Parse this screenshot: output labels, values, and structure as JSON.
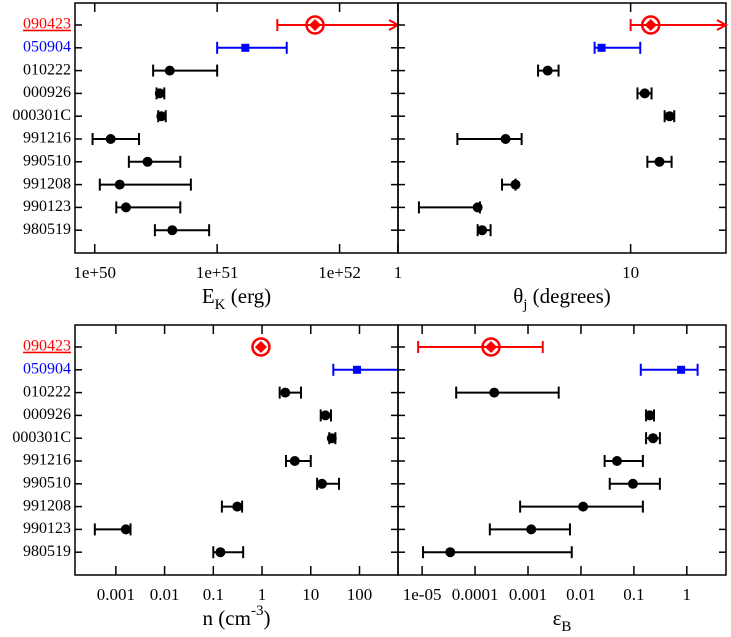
{
  "chart_data": [
    {
      "type": "errorbar",
      "categories": [
        "090423",
        "050904",
        "010222",
        "000926",
        "000301C",
        "991216",
        "990510",
        "991208",
        "990123",
        "980519"
      ],
      "underline_index": 0,
      "values": [
        6.3e+51,
        1.7e+51,
        4.1e+50,
        3.4e+50,
        3.5e+50,
        1.35e+50,
        2.7e+50,
        1.6e+50,
        1.8e+50,
        4.3e+50
      ],
      "lower": [
        3.1e+51,
        1e+51,
        3e+50,
        3.2e+50,
        3.3e+50,
        9.6e+49,
        1.9e+50,
        1.1e+50,
        1.5e+50,
        3.1e+50
      ],
      "upper": [
        null,
        3.7e+51,
        1e+51,
        3.7e+50,
        3.8e+50,
        2.3e+50,
        5e+50,
        6.1e+50,
        5e+50,
        8.6e+50
      ],
      "upper_arrow": [
        true,
        false,
        false,
        false,
        false,
        false,
        false,
        false,
        false,
        false
      ],
      "colors": [
        "#ff0000",
        "#0000ff",
        "#000000",
        "#000000",
        "#000000",
        "#000000",
        "#000000",
        "#000000",
        "#000000",
        "#000000"
      ],
      "markers": [
        "circled-diamond",
        "square",
        "circle",
        "circle",
        "circle",
        "circle",
        "circle",
        "circle",
        "circle",
        "circle"
      ],
      "xscale": "log",
      "xlim": [
        6.9e+49,
        3e+52
      ],
      "xticks": [
        {
          "value": 1e+50,
          "label": "1e+50"
        },
        {
          "value": 1e+51,
          "label": "1e+51"
        },
        {
          "value": 1e+52,
          "label": "1e+52"
        }
      ],
      "xlabel": [
        {
          "text": "E"
        },
        {
          "text": "K",
          "shift": "sub"
        },
        {
          "text": " (erg)"
        }
      ]
    },
    {
      "type": "errorbar",
      "values": [
        12.2,
        7.5,
        4.4,
        11.5,
        14.7,
        2.9,
        13.3,
        3.2,
        2.2,
        2.3
      ],
      "lower": [
        10,
        7.0,
        4.0,
        10.7,
        14.0,
        1.8,
        11.8,
        2.8,
        1.23,
        2.2
      ],
      "upper": [
        null,
        11.0,
        4.9,
        12.3,
        15.4,
        3.4,
        15.0,
        3.2,
        2.25,
        2.5
      ],
      "upper_arrow": [
        true,
        false,
        false,
        false,
        false,
        false,
        false,
        false,
        false,
        false
      ],
      "colors": [
        "#ff0000",
        "#0000ff",
        "#000000",
        "#000000",
        "#000000",
        "#000000",
        "#000000",
        "#000000",
        "#000000",
        "#000000"
      ],
      "markers": [
        "circled-diamond",
        "square",
        "circle",
        "circle",
        "circle",
        "circle",
        "circle",
        "circle",
        "circle",
        "circle"
      ],
      "xscale": "log",
      "xlim": [
        1,
        25.7
      ],
      "xticks": [
        1,
        10
      ],
      "xlabel": [
        {
          "text": "θ"
        },
        {
          "text": "j",
          "shift": "sub"
        },
        {
          "text": "  (degrees)"
        }
      ]
    },
    {
      "type": "errorbar",
      "categories": [
        "090423",
        "050904",
        "010222",
        "000926",
        "000301C",
        "991216",
        "990510",
        "991208",
        "990123",
        "980519"
      ],
      "underline_index": 0,
      "values": [
        0.95,
        89,
        3.0,
        20,
        27,
        4.7,
        17,
        0.31,
        0.0016,
        0.14
      ],
      "lower": [
        null,
        29,
        2.3,
        16,
        24,
        3.1,
        13.5,
        0.15,
        0.00037,
        0.1
      ],
      "upper": [
        null,
        1000,
        6.3,
        26,
        32,
        10,
        38,
        0.39,
        0.002,
        0.41
      ],
      "upper_arrow": [
        false,
        false,
        false,
        false,
        false,
        false,
        false,
        false,
        false,
        false
      ],
      "colors": [
        "#ff0000",
        "#0000ff",
        "#000000",
        "#000000",
        "#000000",
        "#000000",
        "#000000",
        "#000000",
        "#000000",
        "#000000"
      ],
      "markers": [
        "circled-diamond",
        "square",
        "circle",
        "circle",
        "circle",
        "circle",
        "circle",
        "circle",
        "circle",
        "circle"
      ],
      "xscale": "log",
      "xlim": [
        0.000145,
        617
      ],
      "xticks": [
        0.001,
        0.01,
        0.1,
        1,
        10,
        100
      ],
      "xlabel": [
        {
          "text": "n (cm"
        },
        {
          "text": "-3",
          "shift": "super"
        },
        {
          "text": ")"
        }
      ]
    },
    {
      "type": "errorbar",
      "values": [
        0.0002,
        0.78,
        0.00023,
        0.2,
        0.23,
        0.048,
        0.096,
        0.011,
        0.00115,
        3.4e-05
      ],
      "lower": [
        8.4e-06,
        0.135,
        4.4e-05,
        0.17,
        0.17,
        0.028,
        0.035,
        0.00071,
        0.00019,
        1.04e-05
      ],
      "upper": [
        0.0019,
        1.6,
        0.0038,
        0.24,
        0.31,
        0.148,
        0.31,
        0.148,
        0.0062,
        0.0067
      ],
      "upper_arrow": [
        false,
        false,
        false,
        false,
        false,
        false,
        false,
        false,
        false,
        false
      ],
      "colors": [
        "#ff0000",
        "#0000ff",
        "#000000",
        "#000000",
        "#000000",
        "#000000",
        "#000000",
        "#000000",
        "#000000",
        "#000000"
      ],
      "markers": [
        "circled-diamond",
        "square",
        "circle",
        "circle",
        "circle",
        "circle",
        "circle",
        "circle",
        "circle",
        "circle"
      ],
      "xscale": "log",
      "xlim": [
        3.5e-06,
        5.5
      ],
      "xticks": [
        {
          "value": 1e-05,
          "label": "1e-05"
        },
        0.0001,
        0.001,
        0.01,
        0.1,
        1
      ],
      "xlabel": [
        {
          "text": "ε"
        },
        {
          "text": "B",
          "shift": "sub"
        }
      ]
    }
  ]
}
